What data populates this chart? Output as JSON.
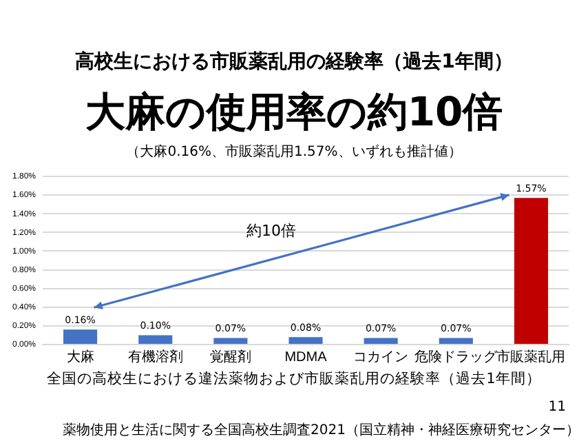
{
  "chart_data": {
    "type": "bar",
    "title": "高校生における市販薬乱用の経験率（過去1年間）",
    "subtitle": "大麻の使用率の約10倍",
    "annotations": [
      "（大麻0.16%、市販薬乱用1.57%、いずれも推計値）",
      "約10倍",
      "全国の高校生における違法薬物および市販薬乱用の経験率（過去1年間）",
      "11",
      "薬物使用と生活に関する全国高校生調査2021（国立精神・神経医療研究センター）"
    ],
    "categories": [
      "大麻",
      "有機溶剤",
      "覚醒剤",
      "MDMA",
      "コカイン",
      "危険ドラッグ",
      "市販薬乱用"
    ],
    "values": [
      0.16,
      0.1,
      0.07,
      0.08,
      0.07,
      0.07,
      1.57
    ],
    "colors": [
      "#4472c4",
      "#4472c4",
      "#4472c4",
      "#4472c4",
      "#4472c4",
      "#4472c4",
      "#c00000"
    ],
    "value_labels": [
      "0.16%",
      "0.10%",
      "0.07%",
      "0.08%",
      "0.07%",
      "0.07%",
      "1.57%"
    ],
    "ylim": [
      0,
      1.8
    ],
    "yticks": [
      {
        "value": 0,
        "label": "0.00%"
      },
      {
        "value": 0.2,
        "label": "0.20%"
      },
      {
        "value": 0.4,
        "label": "0.40%"
      },
      {
        "value": 0.6,
        "label": "0.60%"
      },
      {
        "value": 0.8,
        "label": "0.80%"
      },
      {
        "value": 1.0,
        "label": "1.00%"
      },
      {
        "value": 1.2,
        "label": "1.20%"
      },
      {
        "value": 1.4,
        "label": "1.40%"
      },
      {
        "value": 1.6,
        "label": "1.60%"
      },
      {
        "value": 1.8,
        "label": "1.80%"
      }
    ],
    "grid": "y",
    "legend": false
  }
}
